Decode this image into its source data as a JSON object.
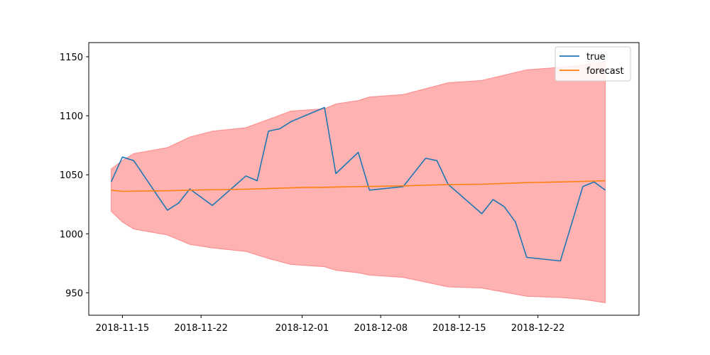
{
  "chart_data": {
    "type": "line",
    "x_type": "date",
    "xlim": [
      "2018-11-12",
      "2018-12-31"
    ],
    "ylim": [
      931,
      1162
    ],
    "x_ticks": [
      "2018-11-15",
      "2018-11-22",
      "2018-12-01",
      "2018-12-08",
      "2018-12-15",
      "2018-12-22"
    ],
    "y_ticks": [
      950,
      1000,
      1050,
      1100,
      1150
    ],
    "legend_position": "top-right",
    "grid": false,
    "series": [
      {
        "name": "true",
        "color": "#1f77b4",
        "points": [
          {
            "x": "2018-11-14",
            "y": 1044
          },
          {
            "x": "2018-11-15",
            "y": 1065
          },
          {
            "x": "2018-11-16",
            "y": 1062
          },
          {
            "x": "2018-11-19",
            "y": 1020
          },
          {
            "x": "2018-11-20",
            "y": 1026
          },
          {
            "x": "2018-11-21",
            "y": 1038
          },
          {
            "x": "2018-11-23",
            "y": 1024
          },
          {
            "x": "2018-11-26",
            "y": 1049
          },
          {
            "x": "2018-11-27",
            "y": 1045
          },
          {
            "x": "2018-11-28",
            "y": 1087
          },
          {
            "x": "2018-11-29",
            "y": 1089
          },
          {
            "x": "2018-11-30",
            "y": 1095
          },
          {
            "x": "2018-12-03",
            "y": 1107
          },
          {
            "x": "2018-12-04",
            "y": 1051
          },
          {
            "x": "2018-12-06",
            "y": 1069
          },
          {
            "x": "2018-12-07",
            "y": 1037
          },
          {
            "x": "2018-12-10",
            "y": 1040
          },
          {
            "x": "2018-12-12",
            "y": 1064
          },
          {
            "x": "2018-12-13",
            "y": 1062
          },
          {
            "x": "2018-12-14",
            "y": 1042
          },
          {
            "x": "2018-12-17",
            "y": 1017
          },
          {
            "x": "2018-12-18",
            "y": 1029
          },
          {
            "x": "2018-12-19",
            "y": 1023
          },
          {
            "x": "2018-12-20",
            "y": 1010
          },
          {
            "x": "2018-12-21",
            "y": 980
          },
          {
            "x": "2018-12-24",
            "y": 977
          },
          {
            "x": "2018-12-26",
            "y": 1040
          },
          {
            "x": "2018-12-27",
            "y": 1044
          },
          {
            "x": "2018-12-28",
            "y": 1037
          }
        ]
      },
      {
        "name": "forecast",
        "color": "#ff7f0e",
        "points": [
          {
            "x": "2018-11-14",
            "y": 1037
          },
          {
            "x": "2018-11-15",
            "y": 1036
          },
          {
            "x": "2018-11-19",
            "y": 1036.5
          },
          {
            "x": "2018-11-22",
            "y": 1037.2
          },
          {
            "x": "2018-11-26",
            "y": 1037.8
          },
          {
            "x": "2018-11-29",
            "y": 1038.6
          },
          {
            "x": "2018-12-01",
            "y": 1039.2
          },
          {
            "x": "2018-12-03",
            "y": 1039.4
          },
          {
            "x": "2018-12-05",
            "y": 1039.8
          },
          {
            "x": "2018-12-08",
            "y": 1040.3
          },
          {
            "x": "2018-12-10",
            "y": 1040.6
          },
          {
            "x": "2018-12-12",
            "y": 1041.2
          },
          {
            "x": "2018-12-14",
            "y": 1041.7
          },
          {
            "x": "2018-12-17",
            "y": 1042
          },
          {
            "x": "2018-12-21",
            "y": 1043.4
          },
          {
            "x": "2018-12-24",
            "y": 1044
          },
          {
            "x": "2018-12-26",
            "y": 1044.4
          },
          {
            "x": "2018-12-28",
            "y": 1045
          }
        ]
      }
    ],
    "confidence_band": {
      "color": "#ff0000",
      "opacity": 0.3,
      "upper": [
        {
          "x": "2018-11-14",
          "y": 1055
        },
        {
          "x": "2018-11-15",
          "y": 1062
        },
        {
          "x": "2018-11-16",
          "y": 1068
        },
        {
          "x": "2018-11-19",
          "y": 1073
        },
        {
          "x": "2018-11-21",
          "y": 1082
        },
        {
          "x": "2018-11-23",
          "y": 1087
        },
        {
          "x": "2018-11-26",
          "y": 1090
        },
        {
          "x": "2018-11-28",
          "y": 1097
        },
        {
          "x": "2018-11-30",
          "y": 1104
        },
        {
          "x": "2018-12-03",
          "y": 1106
        },
        {
          "x": "2018-12-04",
          "y": 1110
        },
        {
          "x": "2018-12-06",
          "y": 1113
        },
        {
          "x": "2018-12-07",
          "y": 1116
        },
        {
          "x": "2018-12-10",
          "y": 1118
        },
        {
          "x": "2018-12-14",
          "y": 1128
        },
        {
          "x": "2018-12-17",
          "y": 1130
        },
        {
          "x": "2018-12-21",
          "y": 1139
        },
        {
          "x": "2018-12-24",
          "y": 1141
        },
        {
          "x": "2018-12-26",
          "y": 1143
        },
        {
          "x": "2018-12-28",
          "y": 1146
        }
      ],
      "lower": [
        {
          "x": "2018-11-14",
          "y": 1019
        },
        {
          "x": "2018-11-15",
          "y": 1010
        },
        {
          "x": "2018-11-16",
          "y": 1004
        },
        {
          "x": "2018-11-19",
          "y": 999
        },
        {
          "x": "2018-11-21",
          "y": 991
        },
        {
          "x": "2018-11-23",
          "y": 988
        },
        {
          "x": "2018-11-26",
          "y": 985
        },
        {
          "x": "2018-11-28",
          "y": 979
        },
        {
          "x": "2018-11-30",
          "y": 974
        },
        {
          "x": "2018-12-03",
          "y": 972
        },
        {
          "x": "2018-12-04",
          "y": 969
        },
        {
          "x": "2018-12-06",
          "y": 967
        },
        {
          "x": "2018-12-07",
          "y": 965
        },
        {
          "x": "2018-12-10",
          "y": 963
        },
        {
          "x": "2018-12-14",
          "y": 955
        },
        {
          "x": "2018-12-17",
          "y": 954
        },
        {
          "x": "2018-12-21",
          "y": 947
        },
        {
          "x": "2018-12-24",
          "y": 946
        },
        {
          "x": "2018-12-26",
          "y": 944.5
        },
        {
          "x": "2018-12-28",
          "y": 941.5
        }
      ]
    }
  }
}
